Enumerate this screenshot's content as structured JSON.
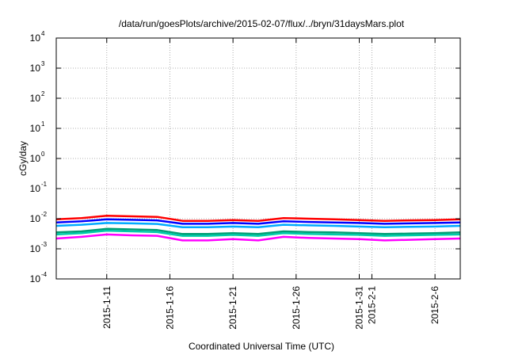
{
  "chart_data": {
    "type": "line",
    "title": "/data/run/goesPlots/archive/2015-02-07/flux/../bryn/31daysMars.plot",
    "xlabel": "Coordinated Universal Time (UTC)",
    "ylabel": "cGy/day",
    "y_scale": "log",
    "ylim": [
      0.0001,
      10000
    ],
    "xlim": [
      "2015-01-07",
      "2015-02-08"
    ],
    "grid": true,
    "y_ticks": [
      {
        "base": "10",
        "exp": "-4"
      },
      {
        "base": "10",
        "exp": "-3"
      },
      {
        "base": "10",
        "exp": "-2"
      },
      {
        "base": "10",
        "exp": "-1"
      },
      {
        "base": "10",
        "exp": "0"
      },
      {
        "base": "10",
        "exp": "1"
      },
      {
        "base": "10",
        "exp": "2"
      },
      {
        "base": "10",
        "exp": "3"
      },
      {
        "base": "10",
        "exp": "4"
      }
    ],
    "x_ticks": [
      {
        "label": "2015-1-11",
        "date": "2015-01-11"
      },
      {
        "label": "2015-1-16",
        "date": "2015-01-16"
      },
      {
        "label": "2015-1-21",
        "date": "2015-01-21"
      },
      {
        "label": "2015-1-26",
        "date": "2015-01-26"
      },
      {
        "label": "2015-1-31",
        "date": "2015-01-31"
      },
      {
        "label": "2015-2-1",
        "date": "2015-02-01"
      },
      {
        "label": "2015-2-6",
        "date": "2015-02-06"
      }
    ],
    "series": [
      {
        "color": "#ff0000",
        "x": [
          "2015-01-07",
          "2015-01-09",
          "2015-01-11",
          "2015-01-13",
          "2015-01-15",
          "2015-01-17",
          "2015-01-19",
          "2015-01-21",
          "2015-01-23",
          "2015-01-25",
          "2015-01-27",
          "2015-01-29",
          "2015-01-31",
          "2015-02-02",
          "2015-02-04",
          "2015-02-06",
          "2015-02-08"
        ],
        "y": [
          0.0095,
          0.0105,
          0.0125,
          0.012,
          0.0115,
          0.0085,
          0.0085,
          0.009,
          0.0085,
          0.0105,
          0.01,
          0.0095,
          0.009,
          0.0085,
          0.0088,
          0.009,
          0.0095
        ]
      },
      {
        "color": "#0000ff",
        "x": [
          "2015-01-07",
          "2015-01-09",
          "2015-01-11",
          "2015-01-13",
          "2015-01-15",
          "2015-01-17",
          "2015-01-19",
          "2015-01-21",
          "2015-01-23",
          "2015-01-25",
          "2015-01-27",
          "2015-01-29",
          "2015-01-31",
          "2015-02-02",
          "2015-02-04",
          "2015-02-06",
          "2015-02-08"
        ],
        "y": [
          0.0075,
          0.0082,
          0.0095,
          0.0092,
          0.0088,
          0.0068,
          0.0068,
          0.0072,
          0.0068,
          0.0082,
          0.0078,
          0.0075,
          0.0072,
          0.0068,
          0.007,
          0.0072,
          0.0075
        ]
      },
      {
        "color": "#00aaff",
        "x": [
          "2015-01-07",
          "2015-01-09",
          "2015-01-11",
          "2015-01-13",
          "2015-01-15",
          "2015-01-17",
          "2015-01-19",
          "2015-01-21",
          "2015-01-23",
          "2015-01-25",
          "2015-01-27",
          "2015-01-29",
          "2015-01-31",
          "2015-02-02",
          "2015-02-04",
          "2015-02-06",
          "2015-02-08"
        ],
        "y": [
          0.0058,
          0.0063,
          0.0072,
          0.007,
          0.0067,
          0.0052,
          0.0052,
          0.0055,
          0.0052,
          0.0063,
          0.006,
          0.0058,
          0.0055,
          0.0052,
          0.0054,
          0.0055,
          0.0058
        ]
      },
      {
        "color": "#009e73",
        "x": [
          "2015-01-07",
          "2015-01-09",
          "2015-01-11",
          "2015-01-13",
          "2015-01-15",
          "2015-01-17",
          "2015-01-19",
          "2015-01-21",
          "2015-01-23",
          "2015-01-25",
          "2015-01-27",
          "2015-01-29",
          "2015-01-31",
          "2015-02-02",
          "2015-02-04",
          "2015-02-06",
          "2015-02-08"
        ],
        "y": [
          0.0035,
          0.0038,
          0.0046,
          0.0044,
          0.0042,
          0.0031,
          0.0031,
          0.0033,
          0.0031,
          0.0038,
          0.0036,
          0.0035,
          0.0033,
          0.0031,
          0.0032,
          0.0033,
          0.0035
        ]
      },
      {
        "color": "#00ccaa",
        "x": [
          "2015-01-07",
          "2015-01-09",
          "2015-01-11",
          "2015-01-13",
          "2015-01-15",
          "2015-01-17",
          "2015-01-19",
          "2015-01-21",
          "2015-01-23",
          "2015-01-25",
          "2015-01-27",
          "2015-01-29",
          "2015-01-31",
          "2015-02-02",
          "2015-02-04",
          "2015-02-06",
          "2015-02-08"
        ],
        "y": [
          0.003,
          0.0033,
          0.004,
          0.0038,
          0.0036,
          0.0027,
          0.0027,
          0.0029,
          0.0027,
          0.0033,
          0.0031,
          0.003,
          0.0029,
          0.0027,
          0.0028,
          0.0029,
          0.003
        ]
      },
      {
        "color": "#ff00ff",
        "x": [
          "2015-01-07",
          "2015-01-09",
          "2015-01-11",
          "2015-01-13",
          "2015-01-15",
          "2015-01-17",
          "2015-01-19",
          "2015-01-21",
          "2015-01-23",
          "2015-01-25",
          "2015-01-27",
          "2015-01-29",
          "2015-01-31",
          "2015-02-02",
          "2015-02-04",
          "2015-02-06",
          "2015-02-08"
        ],
        "y": [
          0.0022,
          0.0025,
          0.003,
          0.0028,
          0.0027,
          0.0019,
          0.0019,
          0.0021,
          0.0019,
          0.0025,
          0.0023,
          0.0022,
          0.0021,
          0.0019,
          0.002,
          0.0021,
          0.0022
        ]
      }
    ]
  }
}
